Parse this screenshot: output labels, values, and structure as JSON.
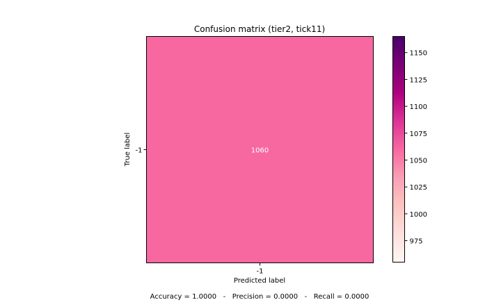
{
  "chart_data": {
    "type": "heatmap",
    "title": "Confusion matrix (tier2, tick11)",
    "xlabel": "Predicted label",
    "ylabel": "True label",
    "x_categories": [
      "-1"
    ],
    "y_categories": [
      "-1"
    ],
    "values": [
      [
        1060
      ]
    ],
    "cell_labels": [
      [
        "1060"
      ]
    ],
    "colormap": "RdPu",
    "colorbar": {
      "range": [
        955,
        1165
      ],
      "ticks": [
        975,
        1000,
        1025,
        1050,
        1075,
        1100,
        1125,
        1150
      ]
    },
    "metrics_text": "Accuracy = 1.0000   -   Precision = 0.0000   -   Recall = 0.0000"
  },
  "colors": {
    "cell_fill": "#f768a1",
    "cell_text": "#ffffff",
    "colormap_stops": [
      "#fff7f3",
      "#fde0dd",
      "#fcc5c0",
      "#fa9fb5",
      "#f768a1",
      "#dd3497",
      "#ae017e",
      "#7a0177",
      "#49006a"
    ]
  }
}
